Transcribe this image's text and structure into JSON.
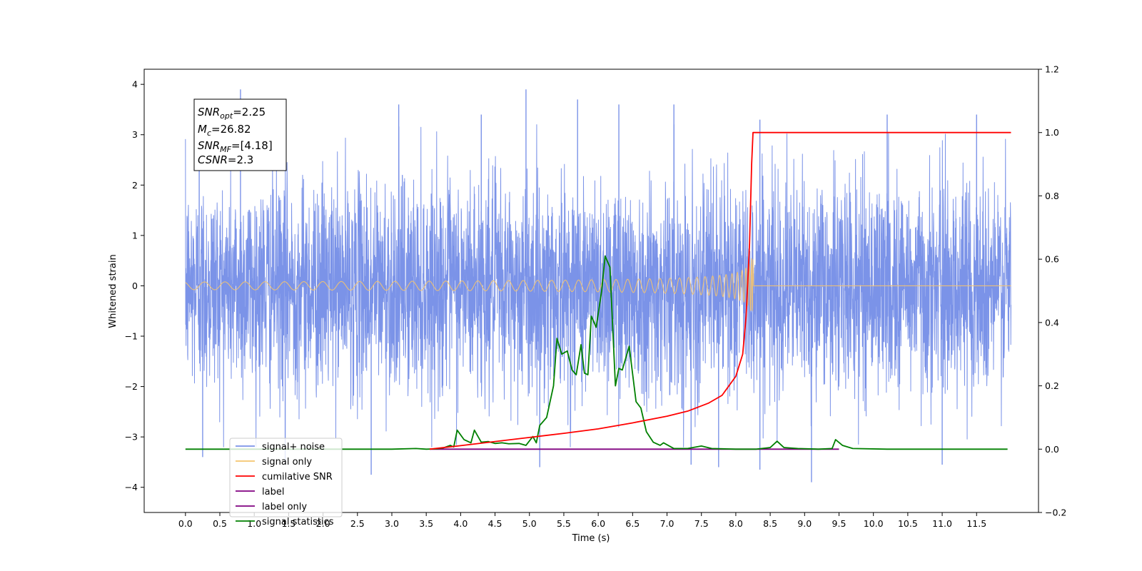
{
  "chart_data": {
    "type": "line",
    "xlabel": "Time (s)",
    "ylabel": "Whitened strain",
    "xlim": [
      -0.6,
      12.4
    ],
    "ylim_left": [
      -4.5,
      4.3
    ],
    "ylim_right": [
      -0.2,
      1.2
    ],
    "x_ticks": [
      "0.0",
      "0.5",
      "1.0",
      "1.5",
      "2.0",
      "2.5",
      "3.0",
      "3.5",
      "4.0",
      "4.5",
      "5.0",
      "5.5",
      "6.0",
      "6.5",
      "7.0",
      "7.5",
      "8.0",
      "8.5",
      "9.0",
      "9.5",
      "10.0",
      "10.5",
      "11.0",
      "11.5"
    ],
    "y_ticks_left": [
      "4",
      "3",
      "2",
      "1",
      "0",
      "−1",
      "−2",
      "−3",
      "−4"
    ],
    "y_ticks_right": [
      "1.2",
      "1.0",
      "0.8",
      "0.6",
      "0.4",
      "0.2",
      "0.0",
      "−0.2"
    ],
    "grid": false,
    "legend_position": "lower-left",
    "annotation": {
      "snr_opt": {
        "sym": "SNR",
        "sub": "opt",
        "value": "=2.25"
      },
      "mc": {
        "sym": "M",
        "sub": "c",
        "value": "=26.82"
      },
      "snr_mf": {
        "sym": "SNR",
        "sub": "MF",
        "value": "=[4.18]"
      },
      "csnr": {
        "sym": "CSNR",
        "sub": "",
        "value": "=2.3"
      }
    },
    "series": [
      {
        "name": "signal+ noise",
        "color": "#7b93e8",
        "axis": "left",
        "x_range": [
          0.0,
          12.0
        ],
        "description_values": {
          "typical_band": [
            -1.8,
            1.8
          ],
          "max": 3.9,
          "min": -3.9
        },
        "spikes": [
          {
            "x": 0.2,
            "y": 3.5
          },
          {
            "x": 0.25,
            "y": -3.4
          },
          {
            "x": 0.8,
            "y": 3.9
          },
          {
            "x": 1.45,
            "y": -3.55
          },
          {
            "x": 2.7,
            "y": -3.75
          },
          {
            "x": 3.1,
            "y": 3.6
          },
          {
            "x": 4.3,
            "y": 3.4
          },
          {
            "x": 4.95,
            "y": 3.9
          },
          {
            "x": 5.15,
            "y": -3.6
          },
          {
            "x": 5.7,
            "y": 3.7
          },
          {
            "x": 6.3,
            "y": 3.6
          },
          {
            "x": 7.1,
            "y": 3.6
          },
          {
            "x": 7.35,
            "y": -3.55
          },
          {
            "x": 7.75,
            "y": -3.6
          },
          {
            "x": 8.35,
            "y": -3.65
          },
          {
            "x": 8.35,
            "y": 3.3
          },
          {
            "x": 9.1,
            "y": -3.9
          },
          {
            "x": 10.2,
            "y": 3.4
          },
          {
            "x": 11.0,
            "y": -3.55
          },
          {
            "x": 11.5,
            "y": 3.4
          }
        ]
      },
      {
        "name": "signal only",
        "color": "#f5c46e",
        "axis": "left",
        "x_range": [
          0.0,
          12.0
        ],
        "chirp_end": 8.25,
        "peak_amplitude": 0.55
      },
      {
        "name": "cumilative SNR",
        "color": "#ff0000",
        "axis": "right",
        "points": [
          [
            3.55,
            0.0
          ],
          [
            4.0,
            0.011
          ],
          [
            4.5,
            0.024
          ],
          [
            5.0,
            0.037
          ],
          [
            5.5,
            0.05
          ],
          [
            6.0,
            0.064
          ],
          [
            6.5,
            0.083
          ],
          [
            7.0,
            0.104
          ],
          [
            7.3,
            0.12
          ],
          [
            7.6,
            0.145
          ],
          [
            7.8,
            0.17
          ],
          [
            8.0,
            0.23
          ],
          [
            8.1,
            0.3
          ],
          [
            8.15,
            0.42
          ],
          [
            8.2,
            0.65
          ],
          [
            8.23,
            0.9
          ],
          [
            8.25,
            1.0
          ],
          [
            12.0,
            1.0
          ]
        ]
      },
      {
        "name": "label",
        "color": "#800080",
        "axis": "right",
        "points": [
          [
            3.55,
            0.0
          ],
          [
            9.5,
            0.0
          ]
        ]
      },
      {
        "name": "label only",
        "color": "#800080",
        "axis": "right",
        "points": []
      },
      {
        "name": "signal statistics",
        "color": "#008000",
        "axis": "right",
        "points": [
          [
            0.0,
            0.0
          ],
          [
            2.5,
            0.0
          ],
          [
            3.0,
            0.0
          ],
          [
            3.35,
            0.002
          ],
          [
            3.5,
            0.0
          ],
          [
            3.65,
            0.001
          ],
          [
            3.75,
            0.004
          ],
          [
            3.85,
            0.012
          ],
          [
            3.9,
            0.007
          ],
          [
            3.95,
            0.06
          ],
          [
            4.05,
            0.03
          ],
          [
            4.15,
            0.02
          ],
          [
            4.2,
            0.06
          ],
          [
            4.3,
            0.022
          ],
          [
            4.4,
            0.024
          ],
          [
            4.5,
            0.018
          ],
          [
            4.6,
            0.02
          ],
          [
            4.7,
            0.017
          ],
          [
            4.85,
            0.018
          ],
          [
            4.95,
            0.012
          ],
          [
            5.05,
            0.04
          ],
          [
            5.1,
            0.02
          ],
          [
            5.15,
            0.075
          ],
          [
            5.25,
            0.1
          ],
          [
            5.35,
            0.2
          ],
          [
            5.4,
            0.35
          ],
          [
            5.47,
            0.3
          ],
          [
            5.55,
            0.31
          ],
          [
            5.62,
            0.25
          ],
          [
            5.68,
            0.235
          ],
          [
            5.75,
            0.33
          ],
          [
            5.8,
            0.24
          ],
          [
            5.85,
            0.235
          ],
          [
            5.9,
            0.42
          ],
          [
            5.97,
            0.385
          ],
          [
            6.05,
            0.5
          ],
          [
            6.1,
            0.61
          ],
          [
            6.17,
            0.575
          ],
          [
            6.25,
            0.2
          ],
          [
            6.3,
            0.255
          ],
          [
            6.35,
            0.25
          ],
          [
            6.45,
            0.325
          ],
          [
            6.55,
            0.15
          ],
          [
            6.62,
            0.13
          ],
          [
            6.7,
            0.055
          ],
          [
            6.8,
            0.022
          ],
          [
            6.9,
            0.012
          ],
          [
            6.95,
            0.02
          ],
          [
            7.1,
            0.002
          ],
          [
            7.3,
            0.002
          ],
          [
            7.5,
            0.01
          ],
          [
            7.65,
            0.002
          ],
          [
            8.0,
            0.0
          ],
          [
            8.3,
            0.0
          ],
          [
            8.5,
            0.005
          ],
          [
            8.6,
            0.025
          ],
          [
            8.7,
            0.005
          ],
          [
            8.9,
            0.002
          ],
          [
            9.2,
            0.0
          ],
          [
            9.4,
            0.002
          ],
          [
            9.45,
            0.03
          ],
          [
            9.55,
            0.012
          ],
          [
            9.7,
            0.002
          ],
          [
            10.2,
            0.0
          ],
          [
            11.95,
            0.0
          ]
        ]
      }
    ]
  }
}
